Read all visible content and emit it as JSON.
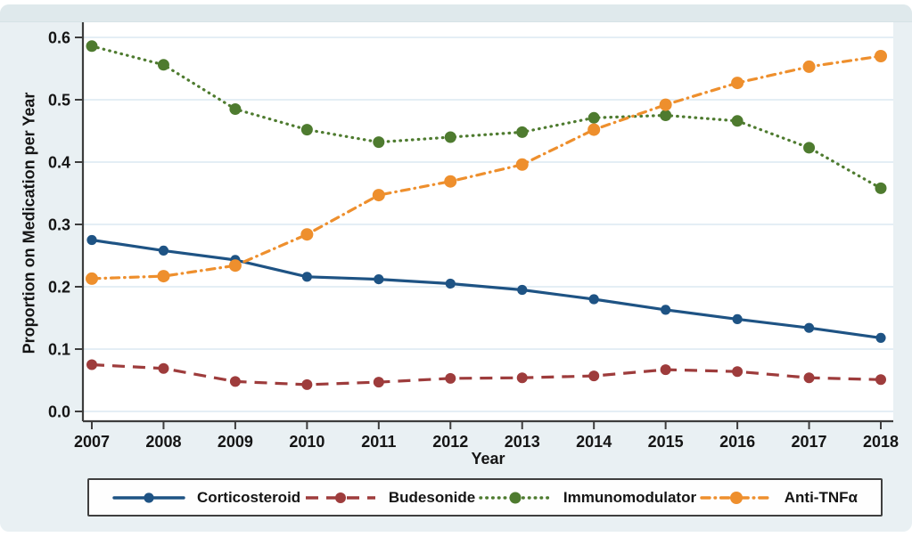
{
  "figure": {
    "x_axis_title": "Year",
    "y_axis_title": "Proportion on Medication per Year"
  },
  "colors": {
    "card_background": "#e9f0f3",
    "top_band": "#dfe9ec",
    "plot_background": "#ffffff",
    "gridline": "#dbe8f2",
    "axis": "#3d3d3d",
    "text": "#151515",
    "legend_border": "#3f3f3f"
  },
  "chart_data": {
    "type": "line",
    "title": "",
    "xlabel": "Year",
    "ylabel": "Proportion on Medication per Year",
    "x": [
      2007,
      2008,
      2009,
      2010,
      2011,
      2012,
      2013,
      2014,
      2015,
      2016,
      2017,
      2018
    ],
    "ylim": [
      0.0,
      0.6
    ],
    "yticks": [
      "0.0",
      "0.1",
      "0.2",
      "0.3",
      "0.4",
      "0.5",
      "0.6"
    ],
    "grid": "horizontal",
    "legend_position": "bottom",
    "series": [
      {
        "name": "Corticosteroid",
        "color": "#1e5384",
        "style": "solid",
        "marker_radius": 5.6,
        "values": [
          0.275,
          0.258,
          0.243,
          0.216,
          0.212,
          0.205,
          0.195,
          0.18,
          0.163,
          0.148,
          0.134,
          0.118
        ]
      },
      {
        "name": "Budesonide",
        "color": "#9e3c3c",
        "style": "dashed",
        "marker_radius": 6.0,
        "values": [
          0.075,
          0.069,
          0.048,
          0.043,
          0.047,
          0.053,
          0.054,
          0.057,
          0.067,
          0.064,
          0.054,
          0.051
        ]
      },
      {
        "name": "Immunomodulator",
        "color": "#4e7b2f",
        "style": "dotted",
        "marker_radius": 6.5,
        "values": [
          0.586,
          0.556,
          0.485,
          0.452,
          0.432,
          0.44,
          0.448,
          0.471,
          0.475,
          0.466,
          0.423,
          0.358
        ]
      },
      {
        "name": "Anti-TNFα",
        "color": "#ee8f2d",
        "style": "dash-dot",
        "marker_radius": 7.0,
        "values": [
          0.213,
          0.217,
          0.234,
          0.284,
          0.347,
          0.369,
          0.396,
          0.452,
          0.492,
          0.527,
          0.553,
          0.57
        ]
      }
    ]
  }
}
